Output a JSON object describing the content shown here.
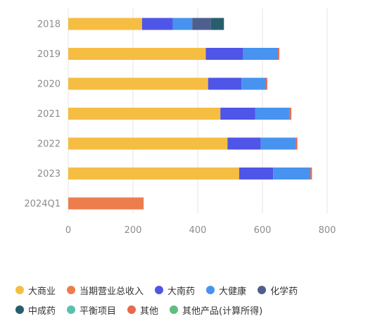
{
  "chart_data": {
    "type": "bar",
    "orientation": "horizontal",
    "stacked": true,
    "categories": [
      "2018",
      "2019",
      "2020",
      "2021",
      "2022",
      "2023",
      "2024Q1"
    ],
    "series": [
      {
        "name": "大商业",
        "color": "#f5bd42",
        "values": [
          228,
          425,
          432,
          470,
          492,
          528,
          0
        ]
      },
      {
        "name": "当期营业总收入",
        "color": "#ee7d4d",
        "values": [
          0,
          0,
          0,
          0,
          0,
          0,
          233
        ]
      },
      {
        "name": "大南药",
        "color": "#4f55e6",
        "values": [
          95,
          115,
          103,
          108,
          103,
          105,
          0
        ]
      },
      {
        "name": "大健康",
        "color": "#4793ef",
        "values": [
          60,
          108,
          76,
          106,
          108,
          115,
          0
        ]
      },
      {
        "name": "化学药",
        "color": "#4e5f8e",
        "values": [
          58,
          0,
          0,
          0,
          0,
          0,
          0
        ]
      },
      {
        "name": "中成药",
        "color": "#275e6e",
        "values": [
          40,
          0,
          0,
          0,
          0,
          0,
          0
        ]
      },
      {
        "name": "平衡项目",
        "color": "#5ac0b0",
        "values": [
          0,
          0,
          0,
          0,
          0,
          0,
          0
        ]
      },
      {
        "name": "其他",
        "color": "#e86a4c",
        "values": [
          0,
          4,
          4,
          5,
          5,
          5,
          0
        ]
      },
      {
        "name": "其他产品(计算所得)",
        "color": "#5dbf7c",
        "values": [
          0,
          0,
          0,
          0,
          0,
          0,
          0
        ]
      }
    ],
    "xlim": [
      0,
      800
    ],
    "xticks": [
      0,
      200,
      400,
      600,
      800
    ],
    "grid": true,
    "legend_position": "bottom"
  },
  "legend_rows": [
    [
      0,
      1,
      2,
      3,
      4
    ],
    [
      5,
      6,
      7,
      8
    ]
  ]
}
